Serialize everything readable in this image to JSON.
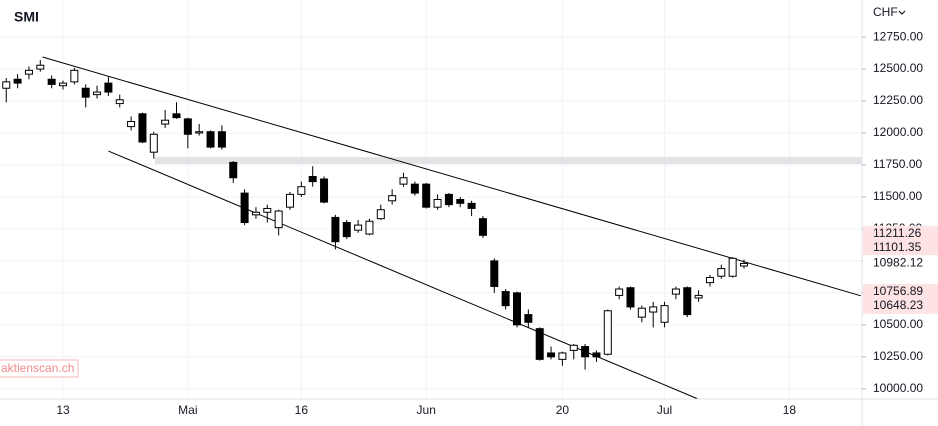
{
  "chart_data": {
    "type": "candlestick",
    "title": "SMI",
    "currency": "CHF",
    "watermark": "aktienscan.ch",
    "categories": [
      null,
      null,
      null,
      null,
      null,
      "13",
      null,
      null,
      null,
      null,
      null,
      null,
      null,
      null,
      null,
      null,
      "Mai",
      null,
      null,
      null,
      null,
      null,
      null,
      null,
      null,
      null,
      "16",
      null,
      null,
      null,
      null,
      null,
      null,
      null,
      null,
      null,
      null,
      "Jun",
      null,
      null,
      null,
      null,
      null,
      null,
      null,
      null,
      null,
      null,
      null,
      "20",
      null,
      null,
      null,
      null,
      null,
      null,
      null,
      null,
      "Jul",
      null,
      null,
      null,
      null,
      null,
      null,
      null,
      null,
      null,
      null,
      "18"
    ],
    "open": [
      12350,
      12420,
      12460,
      12500,
      12420,
      12370,
      12400,
      12350,
      12300,
      12390,
      12230,
      12050,
      12150,
      11850,
      12070,
      12150,
      12110,
      12000,
      12010,
      12010,
      11770,
      11530,
      11360,
      11380,
      11260,
      11420,
      11520,
      11660,
      11640,
      11340,
      11300,
      11240,
      11210,
      11330,
      11470,
      11600,
      11600,
      11600,
      11420,
      11520,
      11480,
      11450,
      11330,
      11000,
      10760,
      10750,
      10580,
      10470,
      10280,
      10230,
      10300,
      10330,
      10280,
      10270,
      10730,
      10790,
      10560,
      10600,
      10520,
      10740,
      10790,
      10710,
      10830,
      10880,
      10880,
      10960,
      null,
      null,
      null,
      null
    ],
    "high": [
      12430,
      12460,
      12520,
      12570,
      12450,
      12410,
      12510,
      12380,
      12370,
      12440,
      12300,
      12130,
      12160,
      12010,
      12180,
      12240,
      12120,
      12070,
      12020,
      12060,
      11780,
      11560,
      11420,
      11440,
      11400,
      11540,
      11620,
      11740,
      11660,
      11360,
      11320,
      11320,
      11330,
      11440,
      11560,
      11690,
      11620,
      11610,
      11520,
      11530,
      11500,
      11470,
      11350,
      11020,
      10780,
      10760,
      10620,
      10480,
      10330,
      10290,
      10350,
      10350,
      10300,
      10620,
      10800,
      10800,
      10650,
      10680,
      10680,
      10800,
      10800,
      10770,
      10890,
      10970,
      11030,
      11010,
      null,
      null,
      null,
      null
    ],
    "low": [
      12240,
      12350,
      12420,
      12480,
      12350,
      12340,
      12380,
      12200,
      12270,
      12290,
      12200,
      12020,
      11920,
      11800,
      12040,
      12110,
      11880,
      11980,
      11880,
      11870,
      11610,
      11280,
      11330,
      11300,
      11200,
      11400,
      11500,
      11580,
      11450,
      11090,
      11170,
      11220,
      11200,
      11320,
      11440,
      11580,
      11510,
      11410,
      11400,
      11420,
      11420,
      11350,
      11180,
      10750,
      10620,
      10480,
      10480,
      10220,
      10230,
      10180,
      10230,
      10150,
      10210,
      10260,
      10700,
      10620,
      10520,
      10480,
      10480,
      10700,
      10560,
      10680,
      10800,
      10860,
      10870,
      10940,
      null,
      null,
      null,
      null
    ],
    "close": [
      12400,
      12390,
      12490,
      12530,
      12380,
      12390,
      12490,
      12280,
      12320,
      12320,
      12260,
      12090,
      11930,
      11990,
      12100,
      12120,
      11990,
      12010,
      11890,
      11890,
      11650,
      11300,
      11380,
      11410,
      11390,
      11520,
      11580,
      11620,
      11460,
      11150,
      11190,
      11280,
      11310,
      11400,
      11510,
      11650,
      11530,
      11420,
      11480,
      11440,
      11450,
      11410,
      11200,
      10800,
      10650,
      10500,
      10520,
      10230,
      10250,
      10280,
      10340,
      10250,
      10250,
      10610,
      10780,
      10640,
      10630,
      10640,
      10650,
      10780,
      10580,
      10730,
      10870,
      10940,
      11020,
      10980,
      null,
      null,
      null,
      null
    ],
    "up_color": "#ffffff",
    "down_color": "#000000",
    "ylim": [
      9920,
      13040
    ],
    "yticks": [
      {
        "value": 10000,
        "label": "10000.00"
      },
      {
        "value": 10250,
        "label": "10250.00"
      },
      {
        "value": 10500,
        "label": "10500.00"
      },
      {
        "value": 10750,
        "label": "10750.00"
      },
      {
        "value": 11000,
        "label": "11000.00"
      },
      {
        "value": 11250,
        "label": "11250.00"
      },
      {
        "value": 11500,
        "label": "11500.00"
      },
      {
        "value": 11750,
        "label": "11750.00"
      },
      {
        "value": 12000,
        "label": "12000.00"
      },
      {
        "value": 12250,
        "label": "12250.00"
      },
      {
        "value": 12500,
        "label": "12500.00"
      },
      {
        "value": 12750,
        "label": "12750.00"
      }
    ],
    "grid": true,
    "trendlines": [
      {
        "x": [
          3.2,
          75.3
        ],
        "y": [
          12594,
          10727
        ],
        "color": "#000000"
      },
      {
        "x": [
          9.0,
          60.9
        ],
        "y": [
          11859,
          9922
        ],
        "color": "#000000"
      }
    ],
    "zone": [
      11758,
      11812
    ],
    "zone_color": "#e3e3e6",
    "price_labels": [
      {
        "value": 11211.26,
        "label": "11211.26",
        "color": "#fde3e3"
      },
      {
        "value": 11101.35,
        "label": "11101.35",
        "color": "#fde3e3"
      },
      {
        "value": 10982.12,
        "label": "10982.12",
        "color": "#ffffff"
      },
      {
        "value": 10756.89,
        "label": "10756.89",
        "color": "#fde3e3"
      },
      {
        "value": 10648.23,
        "label": "10648.23",
        "color": "#fde3e3"
      }
    ]
  }
}
